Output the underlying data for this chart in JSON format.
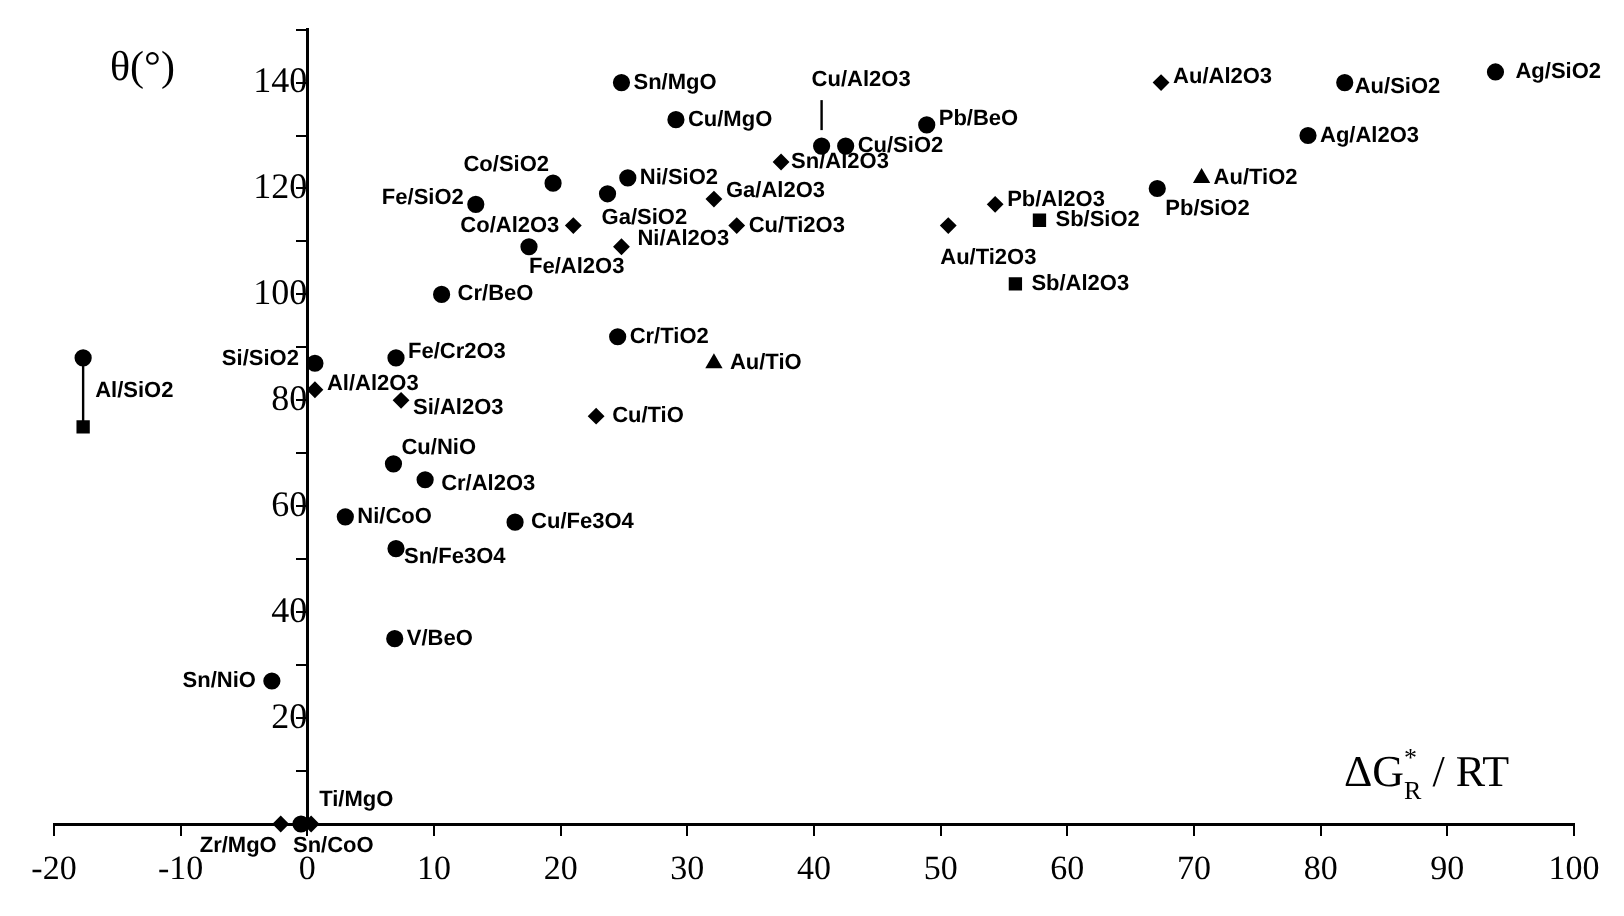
{
  "chart_data": {
    "type": "scatter",
    "xlabel": "ΔG$^{*}$$_{R}$ / RT",
    "ylabel": "θ(°)",
    "xlim": [
      -20,
      100
    ],
    "xticks": [
      -20,
      -10,
      0,
      10,
      20,
      30,
      40,
      50,
      60,
      70,
      80,
      90,
      100
    ],
    "ylim": [
      0,
      150
    ],
    "yticks": [
      {
        "value": 10,
        "label": null
      },
      20,
      {
        "value": 30,
        "label": null
      },
      40,
      {
        "value": 50,
        "label": null
      },
      60,
      {
        "value": 70,
        "label": null
      },
      80,
      {
        "value": 90,
        "label": null
      },
      100,
      {
        "value": 110,
        "label": null
      },
      120,
      {
        "value": 130,
        "label": null
      },
      140,
      {
        "value": 150,
        "label": null
      }
    ],
    "series": [
      {
        "type": "scatter",
        "marker": "circle",
        "color": "#000000",
        "x": [
          19.4,
          13.3,
          17.5,
          10.6,
          0.6,
          7.0,
          6.8,
          9.3,
          3.0,
          16.4,
          7.0,
          6.9,
          -2.8,
          -0.5,
          24.8,
          29.1,
          40.6,
          42.5,
          48.9,
          25.3,
          23.7,
          24.5,
          81.9,
          93.8,
          79.0,
          67.1
        ],
        "values": [
          121,
          117,
          109,
          100,
          87,
          88,
          68,
          65,
          58,
          57,
          52,
          35,
          27,
          0,
          140,
          133,
          128,
          128,
          132,
          122,
          119,
          92,
          140,
          142,
          130,
          120
        ]
      },
      {
        "type": "scatter",
        "marker": "diamond",
        "color": "#000000",
        "x": [
          21.0,
          0.6,
          7.4,
          -2.1,
          0.3,
          37.4,
          32.1,
          33.9,
          24.8,
          50.6,
          54.3,
          22.8,
          67.4
        ],
        "values": [
          113,
          82,
          80,
          0,
          0,
          125,
          118,
          113,
          109,
          113,
          117,
          77,
          140
        ]
      },
      {
        "type": "scatter",
        "marker": "triangle",
        "color": "#000000",
        "x": [
          32.1,
          70.6
        ],
        "values": [
          87,
          122
        ]
      },
      {
        "type": "scatter",
        "marker": "square",
        "color": "#000000",
        "x": [
          57.8,
          55.9,
          -17.7
        ],
        "values": [
          114,
          102,
          75
        ],
        "errors": [
          null,
          null,
          [
            75,
            88
          ]
        ]
      },
      {
        "type": "scatter",
        "marker": "circle",
        "color": "#000000",
        "x": [
          -17.7
        ],
        "values": [
          88
        ]
      }
    ],
    "annotations": [
      {
        "text": "Co/SiO2",
        "x": 19.4,
        "y": 121
      },
      {
        "text": "Fe/SiO2",
        "x": 13.3,
        "y": 117
      },
      {
        "text": "Fe/Al2O3",
        "x": 17.5,
        "y": 109
      },
      {
        "text": "Cr/BeO",
        "x": 10.6,
        "y": 100
      },
      {
        "text": "Si/SiO2",
        "x": 0.6,
        "y": 87
      },
      {
        "text": "Fe/Cr2O3",
        "x": 7.0,
        "y": 88
      },
      {
        "text": "Cu/NiO",
        "x": 6.8,
        "y": 68
      },
      {
        "text": "Cr/Al2O3",
        "x": 9.3,
        "y": 65
      },
      {
        "text": "Ni/CoO",
        "x": 3.0,
        "y": 58
      },
      {
        "text": "Cu/Fe3O4",
        "x": 16.4,
        "y": 57
      },
      {
        "text": "Sn/Fe3O4",
        "x": 7.0,
        "y": 52
      },
      {
        "text": "V/BeO",
        "x": 6.9,
        "y": 35
      },
      {
        "text": "Sn/NiO",
        "x": -2.8,
        "y": 27
      },
      {
        "text": "Sn/CoO",
        "x": -0.5,
        "y": 0
      },
      {
        "text": "Sn/MgO",
        "x": 24.8,
        "y": 140
      },
      {
        "text": "Cu/MgO",
        "x": 29.1,
        "y": 133
      },
      {
        "text": "Cu/Al2O3",
        "x": 40.6,
        "y": 128
      },
      {
        "text": "Cu/SiO2",
        "x": 42.5,
        "y": 128
      },
      {
        "text": "Pb/BeO",
        "x": 48.9,
        "y": 132
      },
      {
        "text": "Ni/SiO2",
        "x": 25.3,
        "y": 122
      },
      {
        "text": "Ga/SiO2",
        "x": 23.7,
        "y": 119
      },
      {
        "text": "Cr/TiO2",
        "x": 24.5,
        "y": 92
      },
      {
        "text": "Au/SiO2",
        "x": 81.9,
        "y": 140
      },
      {
        "text": "Ag/SiO2",
        "x": 93.8,
        "y": 142
      },
      {
        "text": "Ag/Al2O3",
        "x": 79.0,
        "y": 130
      },
      {
        "text": "Pb/SiO2",
        "x": 67.1,
        "y": 120
      },
      {
        "text": "Co/Al2O3",
        "x": 21.0,
        "y": 113
      },
      {
        "text": "Al/Al2O3",
        "x": 0.6,
        "y": 82
      },
      {
        "text": "Si/Al2O3",
        "x": 7.4,
        "y": 80
      },
      {
        "text": "Zr/MgO",
        "x": -2.1,
        "y": 0
      },
      {
        "text": "Ti/MgO",
        "x": 0.3,
        "y": 0
      },
      {
        "text": "Sn/Al2O3",
        "x": 37.4,
        "y": 125
      },
      {
        "text": "Ga/Al2O3",
        "x": 32.1,
        "y": 118
      },
      {
        "text": "Cu/Ti2O3",
        "x": 33.9,
        "y": 113
      },
      {
        "text": "Ni/Al2O3",
        "x": 24.8,
        "y": 109
      },
      {
        "text": "Au/Ti2O3",
        "x": 50.6,
        "y": 113
      },
      {
        "text": "Pb/Al2O3",
        "x": 54.3,
        "y": 117
      },
      {
        "text": "Cu/TiO",
        "x": 22.8,
        "y": 77
      },
      {
        "text": "Au/Al2O3",
        "x": 67.4,
        "y": 140
      },
      {
        "text": "Au/TiO",
        "x": 32.1,
        "y": 87
      },
      {
        "text": "Au/TiO2",
        "x": 70.6,
        "y": 122
      },
      {
        "text": "Sb/SiO2",
        "x": 57.8,
        "y": 114
      },
      {
        "text": "Sb/Al2O3",
        "x": 55.9,
        "y": 102
      },
      {
        "text": "Al/SiO2",
        "x": -17.7,
        "y": 75
      }
    ]
  }
}
